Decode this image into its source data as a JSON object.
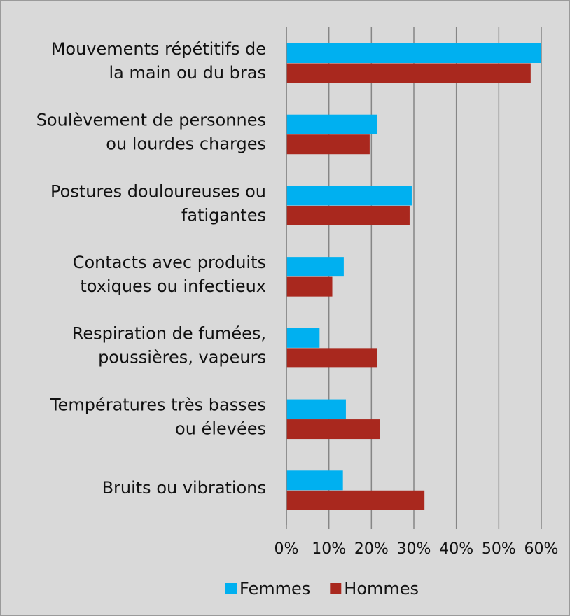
{
  "chart_data": {
    "type": "barh",
    "categories": [
      [
        "Mouvements répétitifs de",
        "la main ou du bras"
      ],
      [
        "Soulèvement de personnes",
        "ou lourdes charges"
      ],
      [
        "Postures douloureuses ou",
        "fatigantes"
      ],
      [
        "Contacts avec produits",
        "toxiques ou infectieux"
      ],
      [
        "Respiration de fumées,",
        "poussières, vapeurs"
      ],
      [
        "Températures très basses",
        "ou élevées"
      ],
      [
        "Bruits ou vibrations"
      ]
    ],
    "series": [
      {
        "name": "Femmes",
        "color": "#00b0f0",
        "values": [
          60,
          21.4,
          29.5,
          13.5,
          7.8,
          14,
          13.3
        ]
      },
      {
        "name": "Hommes",
        "color": "#a9281e",
        "values": [
          57.5,
          19.6,
          29,
          10.8,
          21.4,
          22,
          32.5
        ]
      }
    ],
    "xlim": [
      0,
      60
    ],
    "xticks": [
      {
        "value": 0,
        "label": "0%"
      },
      {
        "value": 10,
        "label": "10%"
      },
      {
        "value": 20,
        "label": "20%"
      },
      {
        "value": 30,
        "label": "30%"
      },
      {
        "value": 40,
        "label": "40%"
      },
      {
        "value": 50,
        "label": "50%"
      },
      {
        "value": 60,
        "label": "60%"
      }
    ],
    "grid": true,
    "legend": "bottom"
  }
}
